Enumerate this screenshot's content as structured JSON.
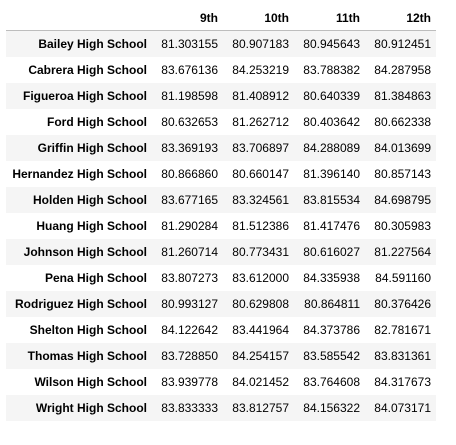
{
  "table": {
    "header": [
      "",
      "9th",
      "10th",
      "11th",
      "12th"
    ],
    "rows": [
      {
        "school": "Bailey High School",
        "values": [
          "81.303155",
          "80.907183",
          "80.945643",
          "80.912451"
        ]
      },
      {
        "school": "Cabrera High School",
        "values": [
          "83.676136",
          "84.253219",
          "83.788382",
          "84.287958"
        ]
      },
      {
        "school": "Figueroa High School",
        "values": [
          "81.198598",
          "81.408912",
          "80.640339",
          "81.384863"
        ]
      },
      {
        "school": "Ford High School",
        "values": [
          "80.632653",
          "81.262712",
          "80.403642",
          "80.662338"
        ]
      },
      {
        "school": "Griffin High School",
        "values": [
          "83.369193",
          "83.706897",
          "84.288089",
          "84.013699"
        ]
      },
      {
        "school": "Hernandez High School",
        "values": [
          "80.866860",
          "80.660147",
          "81.396140",
          "80.857143"
        ]
      },
      {
        "school": "Holden High School",
        "values": [
          "83.677165",
          "83.324561",
          "83.815534",
          "84.698795"
        ]
      },
      {
        "school": "Huang High School",
        "values": [
          "81.290284",
          "81.512386",
          "81.417476",
          "80.305983"
        ]
      },
      {
        "school": "Johnson High School",
        "values": [
          "81.260714",
          "80.773431",
          "80.616027",
          "81.227564"
        ]
      },
      {
        "school": "Pena High School",
        "values": [
          "83.807273",
          "83.612000",
          "84.335938",
          "84.591160"
        ]
      },
      {
        "school": "Rodriguez High School",
        "values": [
          "80.993127",
          "80.629808",
          "80.864811",
          "80.376426"
        ]
      },
      {
        "school": "Shelton High School",
        "values": [
          "84.122642",
          "83.441964",
          "84.373786",
          "82.781671"
        ]
      },
      {
        "school": "Thomas High School",
        "values": [
          "83.728850",
          "84.254157",
          "83.585542",
          "83.831361"
        ]
      },
      {
        "school": "Wilson High School",
        "values": [
          "83.939778",
          "84.021452",
          "83.764608",
          "84.317673"
        ]
      },
      {
        "school": "Wright High School",
        "values": [
          "83.833333",
          "83.812757",
          "84.156322",
          "84.073171"
        ]
      }
    ]
  }
}
